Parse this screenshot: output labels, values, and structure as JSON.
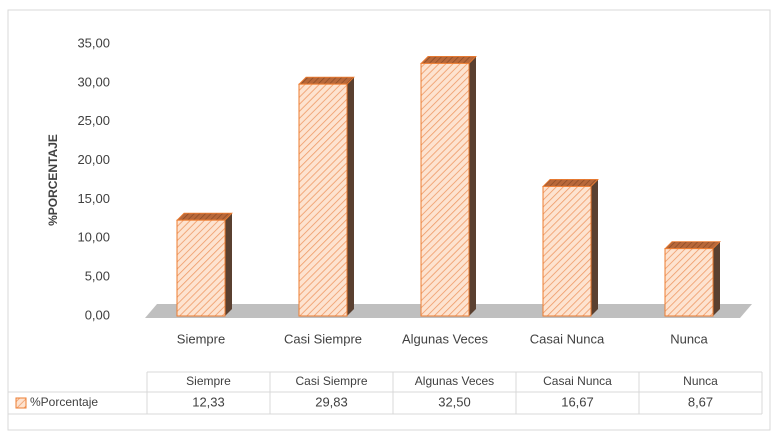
{
  "chart_data": {
    "type": "bar3d",
    "y_label": "%PORCENTAJE",
    "categories": [
      "Siempre",
      "Casi Siempre",
      "Algunas Veces",
      "Casai Nunca",
      "Nunca"
    ],
    "series": [
      {
        "name": "%Porcentaje",
        "color": "#ed7d31",
        "values": [
          12.33,
          29.83,
          32.5,
          16.67,
          8.67
        ],
        "value_labels": [
          "12,33",
          "29,83",
          "32,50",
          "16,67",
          "8,67"
        ]
      }
    ],
    "ylim": [
      0,
      35
    ],
    "yticks": [
      {
        "value": 0,
        "label": "0,00"
      },
      {
        "value": 5,
        "label": "5,00"
      },
      {
        "value": 10,
        "label": "10,00"
      },
      {
        "value": 15,
        "label": "15,00"
      },
      {
        "value": 20,
        "label": "20,00"
      },
      {
        "value": 25,
        "label": "25,00"
      },
      {
        "value": 30,
        "label": "30,00"
      },
      {
        "value": 35,
        "label": "35,00"
      }
    ],
    "grid": false,
    "data_table": true
  }
}
